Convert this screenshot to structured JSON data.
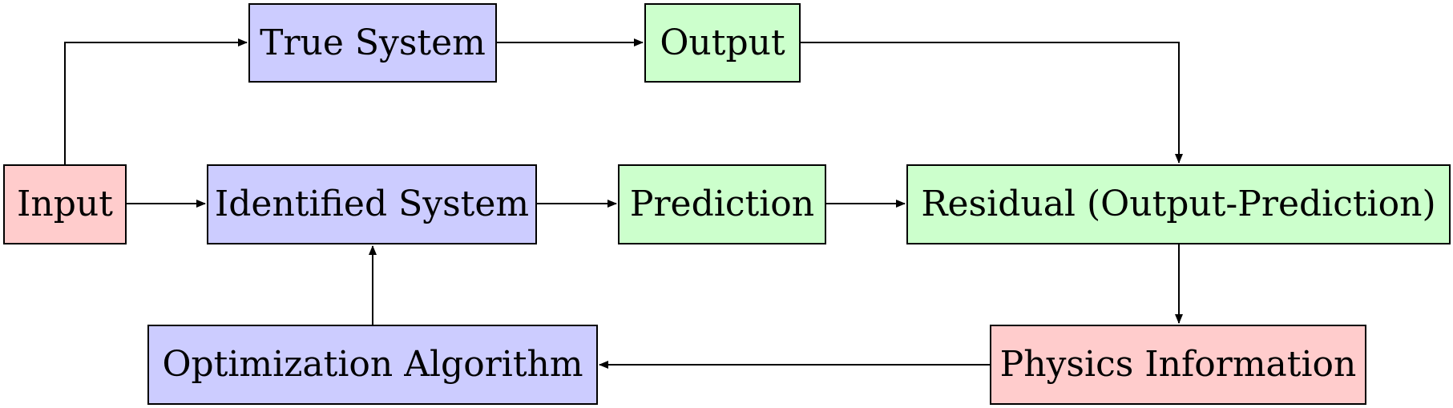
{
  "colors": {
    "red_fill": "#ffcccc",
    "blue_fill": "#ccccff",
    "green_fill": "#ccffcc",
    "stroke": "#000000"
  },
  "nodes": {
    "input": "Input",
    "true_system": "True System",
    "output": "Output",
    "identified_system": "Identified System",
    "prediction": "Prediction",
    "residual": "Residual (Output-Prediction)",
    "optimization_algorithm": "Optimization Algorithm",
    "physics_information": "Physics Information"
  },
  "edges": [
    {
      "from": "Input",
      "to": "True System"
    },
    {
      "from": "True System",
      "to": "Output"
    },
    {
      "from": "Output",
      "to": "Residual (Output-Prediction)"
    },
    {
      "from": "Input",
      "to": "Identified System"
    },
    {
      "from": "Identified System",
      "to": "Prediction"
    },
    {
      "from": "Prediction",
      "to": "Residual (Output-Prediction)"
    },
    {
      "from": "Residual (Output-Prediction)",
      "to": "Physics Information"
    },
    {
      "from": "Physics Information",
      "to": "Optimization Algorithm"
    },
    {
      "from": "Optimization Algorithm",
      "to": "Identified System"
    }
  ]
}
